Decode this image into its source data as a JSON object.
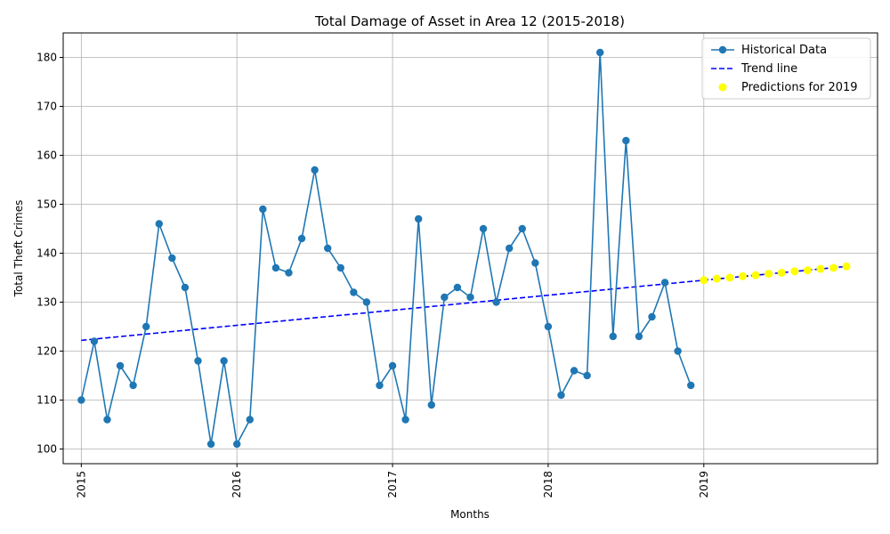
{
  "chart_data": {
    "type": "line",
    "title": "Total Damage of Asset in Area 12 (2015-2018)",
    "xlabel": "Months",
    "ylabel": "Total Theft Crimes",
    "xlim": [
      2014.8837,
      2020.1163
    ],
    "ylim": [
      97,
      185
    ],
    "grid": true,
    "legend_position": "top-right",
    "x_ticks": [
      2015,
      2016,
      2017,
      2018,
      2019
    ],
    "x_tick_labels": [
      "2015",
      "2016",
      "2017",
      "2018",
      "2019"
    ],
    "y_ticks": [
      100,
      110,
      120,
      130,
      140,
      150,
      160,
      170,
      180
    ],
    "y_tick_labels": [
      "100",
      "110",
      "120",
      "130",
      "140",
      "150",
      "160",
      "170",
      "180"
    ],
    "series": [
      {
        "name": "Historical Data",
        "style": "line-marker",
        "color": "#1f77b4",
        "x": [
          2015.0,
          2015.0833,
          2015.1667,
          2015.25,
          2015.3333,
          2015.4167,
          2015.5,
          2015.5833,
          2015.6667,
          2015.75,
          2015.8333,
          2015.9167,
          2016.0,
          2016.0833,
          2016.1667,
          2016.25,
          2016.3333,
          2016.4167,
          2016.5,
          2016.5833,
          2016.6667,
          2016.75,
          2016.8333,
          2016.9167,
          2017.0,
          2017.0833,
          2017.1667,
          2017.25,
          2017.3333,
          2017.4167,
          2017.5,
          2017.5833,
          2017.6667,
          2017.75,
          2017.8333,
          2017.9167,
          2018.0,
          2018.0833,
          2018.1667,
          2018.25,
          2018.3333,
          2018.4167,
          2018.5,
          2018.5833,
          2018.6667,
          2018.75,
          2018.8333,
          2018.9167
        ],
        "y": [
          110,
          122,
          106,
          117,
          113,
          125,
          146,
          139,
          133,
          118,
          101,
          118,
          101,
          106,
          149,
          137,
          136,
          143,
          157,
          141,
          137,
          132,
          130,
          113,
          117,
          106,
          147,
          109,
          131,
          133,
          131,
          145,
          130,
          141,
          145,
          138,
          125,
          111,
          116,
          115,
          181,
          123,
          163,
          123,
          127,
          134,
          120,
          113
        ]
      },
      {
        "name": "Trend line",
        "style": "dashed",
        "color": "#0000ff",
        "x": [
          2015.0,
          2019.9167
        ],
        "y": [
          122.2,
          137.3
        ]
      },
      {
        "name": "Predictions for 2019",
        "style": "scatter",
        "color": "#ffff00",
        "x": [
          2019.0,
          2019.0833,
          2019.1667,
          2019.25,
          2019.3333,
          2019.4167,
          2019.5,
          2019.5833,
          2019.6667,
          2019.75,
          2019.8333,
          2019.9167
        ],
        "y": [
          134.5,
          134.8,
          135.0,
          135.3,
          135.5,
          135.8,
          136.0,
          136.3,
          136.5,
          136.8,
          137.0,
          137.3
        ]
      }
    ]
  }
}
